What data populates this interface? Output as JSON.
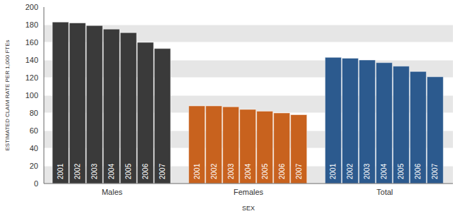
{
  "chart_data": {
    "type": "bar",
    "x_label": "SEX",
    "y_label": "ESTIMATED CLAIM RATE PER 1,000 FTEs",
    "categories": [
      "Males",
      "Females",
      "Total"
    ],
    "colors": [
      "#3a3a3a",
      "#c8621e",
      "#2c5a8e"
    ],
    "series": [
      {
        "name": "2001",
        "values": [
          183,
          88,
          143
        ]
      },
      {
        "name": "2002",
        "values": [
          182,
          88,
          142
        ]
      },
      {
        "name": "2003",
        "values": [
          179,
          87,
          140
        ]
      },
      {
        "name": "2004",
        "values": [
          175,
          84,
          137
        ]
      },
      {
        "name": "2005",
        "values": [
          171,
          82,
          133
        ]
      },
      {
        "name": "2006",
        "values": [
          160,
          80,
          127
        ]
      },
      {
        "name": "2007",
        "values": [
          153,
          78,
          121
        ]
      }
    ],
    "ylim": [
      0,
      200
    ],
    "yticks": [
      0,
      20,
      40,
      60,
      80,
      100,
      120,
      140,
      160,
      180,
      200
    ],
    "grid": true
  }
}
